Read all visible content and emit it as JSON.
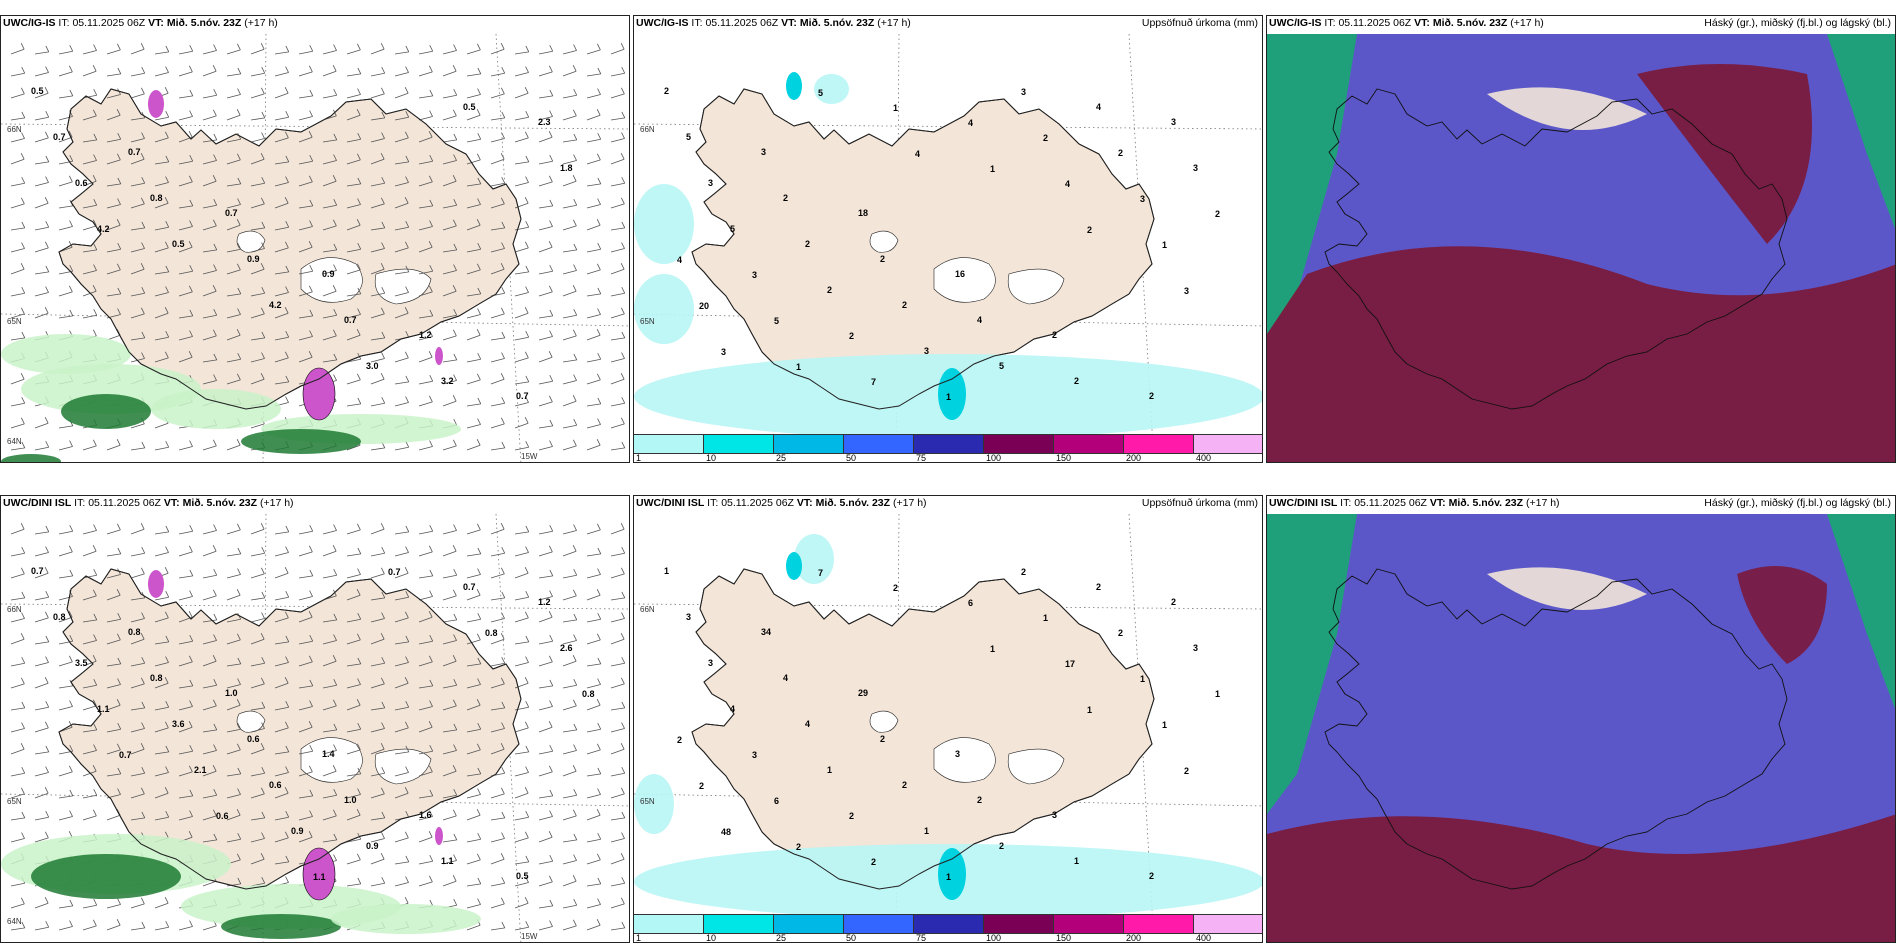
{
  "panels": [
    {
      "model": "UWC/IG-IS",
      "it_label": "IT:",
      "it_value": "05.11.2025 06Z",
      "vt_label": "VT:",
      "vt_value": "Mið. 5.nóv. 23Z",
      "lead": "(+17 h)",
      "right_title": "",
      "type": "precip-wind",
      "labels": [
        "0.5",
        "0.7",
        "0.7",
        "0.9",
        "1.2",
        "0.7",
        "0.7",
        "0.8",
        "0.9",
        "0.7",
        "3.2",
        "2.3",
        "0.6",
        "0.5",
        "4.2",
        "3.0",
        "0.5",
        "1.8",
        "4.2"
      ],
      "axis": [
        "66N",
        "65N",
        "64N",
        "15W"
      ]
    },
    {
      "model": "UWC/IG-IS",
      "it_label": "IT:",
      "it_value": "05.11.2025 06Z",
      "vt_label": "VT:",
      "vt_value": "Mið. 5.nóv. 23Z",
      "lead": "(+17 h)",
      "right_title": "Uppsöfnuð úrkoma (mm)",
      "type": "accum",
      "labels": [
        "2",
        "3",
        "18",
        "16",
        "2",
        "2",
        "5",
        "2",
        "2",
        "4",
        "2",
        "3",
        "3",
        "2",
        "2",
        "5",
        "4",
        "3",
        "5",
        "2",
        "3",
        "3",
        "2",
        "2",
        "3",
        "2",
        "1",
        "2",
        "3",
        "4",
        "5",
        "7",
        "4",
        "4",
        "1",
        "20",
        "1",
        "1",
        "1",
        "2",
        "3",
        "3",
        "5",
        "4"
      ],
      "axis": [
        "66N",
        "65N"
      ]
    },
    {
      "model": "UWC/IG-IS",
      "it_label": "IT:",
      "it_value": "05.11.2025 06Z",
      "vt_label": "VT:",
      "vt_value": "Mið. 5.nóv. 23Z",
      "lead": "(+17 h)",
      "right_title": "Háský (gr.), miðský (fj.bl.) og lágský (bl.)",
      "type": "cloud"
    },
    {
      "model": "UWC/DINI ISL",
      "it_label": "IT:",
      "it_value": "05.11.2025 06Z",
      "vt_label": "VT:",
      "vt_value": "Mið. 5.nóv. 23Z",
      "lead": "(+17 h)",
      "right_title": "",
      "type": "precip-wind",
      "labels": [
        "0.7",
        "0.8",
        "1.0",
        "1.4",
        "1.6",
        "0.5",
        "0.8",
        "0.8",
        "0.6",
        "1.0",
        "1.1",
        "1.2",
        "3.5",
        "3.6",
        "0.6",
        "0.9",
        "0.7",
        "2.6",
        "1.1",
        "2.1",
        "0.9",
        "0.7",
        "0.8",
        "0.8",
        "0.7",
        "0.6",
        "1.1"
      ],
      "axis": [
        "66N",
        "65N",
        "64N",
        "15W"
      ]
    },
    {
      "model": "UWC/DINI ISL",
      "it_label": "IT:",
      "it_value": "05.11.2025 06Z",
      "vt_label": "VT:",
      "vt_value": "Mið. 5.nóv. 23Z",
      "lead": "(+17 h)",
      "right_title": "Uppsöfnuð úrkoma (mm)",
      "type": "accum",
      "labels": [
        "1",
        "34",
        "29",
        "3",
        "3",
        "2",
        "3",
        "4",
        "2",
        "2",
        "1",
        "2",
        "3",
        "4",
        "2",
        "2",
        "2",
        "3",
        "4",
        "1",
        "1",
        "2",
        "2",
        "1",
        "3",
        "2",
        "1",
        "1",
        "1",
        "2",
        "6",
        "2",
        "6",
        "17",
        "1",
        "2",
        "2",
        "2",
        "1",
        "1",
        "2",
        "48",
        "7"
      ],
      "axis": [
        "66N",
        "65N"
      ]
    },
    {
      "model": "UWC/DINI ISL",
      "it_label": "IT:",
      "it_value": "05.11.2025 06Z",
      "vt_label": "VT:",
      "vt_value": "Mið. 5.nóv. 23Z",
      "lead": "(+17 h)",
      "right_title": "Háský (gr.), miðský (fj.bl.) og lágský (bl.)",
      "type": "cloud"
    }
  ],
  "accum_legend": {
    "colors": [
      "#b3f7f7",
      "#00e5e5",
      "#00b8e6",
      "#3366ff",
      "#2a2ab0",
      "#7a0055",
      "#b3007a",
      "#ff1aaa",
      "#f5b3f5"
    ],
    "ticks": [
      "1",
      "10",
      "25",
      "50",
      "75",
      "100",
      "150",
      "200",
      "400"
    ]
  },
  "colors": {
    "land": "#f3e5d8",
    "precip_green_light": "#c9f2c9",
    "precip_green_dark": "#1f7a32",
    "precip_purple": "#cc55cc",
    "accum_cyan_light": "#b8f5f5",
    "accum_cyan_dark": "#00d2e0",
    "cloud_high": "#1fa07a",
    "cloud_mid": "#5b57c9",
    "cloud_low": "#7a1a3c",
    "coast": "#222222"
  }
}
